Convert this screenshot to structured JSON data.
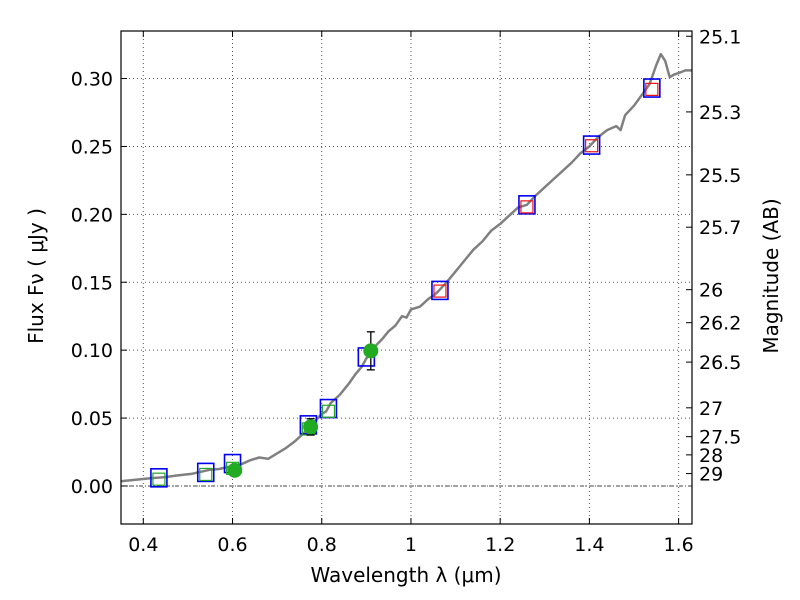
{
  "chart_data": {
    "type": "scatter",
    "xlabel": "Wavelength  λ (μm)",
    "ylabel": "Flux  Fν  ( μJy )",
    "ylabel_right": "Magnitude (AB)",
    "xlim": [
      0.35,
      1.63
    ],
    "ylim": [
      -0.028,
      0.335
    ],
    "grid": true,
    "x_ticks": [
      {
        "value": 0.4,
        "label": "0.4"
      },
      {
        "value": 0.6,
        "label": "0.6"
      },
      {
        "value": 0.8,
        "label": "0.8"
      },
      {
        "value": 1.0,
        "label": "1"
      },
      {
        "value": 1.2,
        "label": "1.2"
      },
      {
        "value": 1.4,
        "label": "1.4"
      },
      {
        "value": 1.6,
        "label": "1.6"
      }
    ],
    "y_ticks": [
      {
        "value": 0.0,
        "label": "0.00"
      },
      {
        "value": 0.05,
        "label": "0.05"
      },
      {
        "value": 0.1,
        "label": "0.10"
      },
      {
        "value": 0.15,
        "label": "0.15"
      },
      {
        "value": 0.2,
        "label": "0.20"
      },
      {
        "value": 0.25,
        "label": "0.25"
      },
      {
        "value": 0.3,
        "label": "0.30"
      }
    ],
    "mag_ticks": [
      {
        "value": 25.1,
        "label": "25.1"
      },
      {
        "value": 25.3,
        "label": "25.3"
      },
      {
        "value": 25.5,
        "label": "25.5"
      },
      {
        "value": 25.7,
        "label": "25.7"
      },
      {
        "value": 26,
        "label": "26"
      },
      {
        "value": 26.2,
        "label": "26.2"
      },
      {
        "value": 26.5,
        "label": "26.5"
      },
      {
        "value": 27,
        "label": "27"
      },
      {
        "value": 27.5,
        "label": "27.5"
      },
      {
        "value": 28,
        "label": "28"
      },
      {
        "value": 29,
        "label": "29"
      }
    ],
    "colors": {
      "model": "#808080",
      "observed": "#22aa22",
      "model_box": "#0000ee",
      "green_box": "#22aa22",
      "red_box": "#ee1111",
      "errorbar": "#000000",
      "grid": "#555555"
    },
    "series": [
      {
        "name": "model spectrum",
        "style": "line",
        "points": [
          [
            0.35,
            0.0035
          ],
          [
            0.38,
            0.0045
          ],
          [
            0.41,
            0.0055
          ],
          [
            0.43,
            0.006
          ],
          [
            0.45,
            0.0065
          ],
          [
            0.47,
            0.0075
          ],
          [
            0.49,
            0.0082
          ],
          [
            0.51,
            0.009
          ],
          [
            0.53,
            0.0105
          ],
          [
            0.55,
            0.012
          ],
          [
            0.57,
            0.0125
          ],
          [
            0.59,
            0.014
          ],
          [
            0.6,
            0.0145
          ],
          [
            0.62,
            0.016
          ],
          [
            0.64,
            0.019
          ],
          [
            0.66,
            0.021
          ],
          [
            0.68,
            0.02
          ],
          [
            0.7,
            0.024
          ],
          [
            0.72,
            0.028
          ],
          [
            0.74,
            0.033
          ],
          [
            0.76,
            0.039
          ],
          [
            0.78,
            0.046
          ],
          [
            0.8,
            0.053
          ],
          [
            0.81,
            0.055
          ],
          [
            0.82,
            0.061
          ],
          [
            0.84,
            0.067
          ],
          [
            0.86,
            0.075
          ],
          [
            0.875,
            0.082
          ],
          [
            0.89,
            0.088
          ],
          [
            0.9,
            0.094
          ],
          [
            0.91,
            0.097
          ],
          [
            0.92,
            0.103
          ],
          [
            0.935,
            0.108
          ],
          [
            0.95,
            0.114
          ],
          [
            0.965,
            0.118
          ],
          [
            0.98,
            0.125
          ],
          [
            0.99,
            0.124
          ],
          [
            1.0,
            0.13
          ],
          [
            1.02,
            0.132
          ],
          [
            1.04,
            0.138
          ],
          [
            1.05,
            0.14
          ],
          [
            1.06,
            0.143
          ],
          [
            1.08,
            0.15
          ],
          [
            1.1,
            0.158
          ],
          [
            1.12,
            0.166
          ],
          [
            1.14,
            0.174
          ],
          [
            1.16,
            0.18
          ],
          [
            1.18,
            0.188
          ],
          [
            1.2,
            0.193
          ],
          [
            1.22,
            0.199
          ],
          [
            1.24,
            0.205
          ],
          [
            1.26,
            0.207
          ],
          [
            1.28,
            0.214
          ],
          [
            1.3,
            0.22
          ],
          [
            1.32,
            0.226
          ],
          [
            1.34,
            0.232
          ],
          [
            1.36,
            0.238
          ],
          [
            1.38,
            0.245
          ],
          [
            1.4,
            0.25
          ],
          [
            1.42,
            0.257
          ],
          [
            1.44,
            0.262
          ],
          [
            1.46,
            0.265
          ],
          [
            1.47,
            0.262
          ],
          [
            1.48,
            0.273
          ],
          [
            1.5,
            0.28
          ],
          [
            1.52,
            0.289
          ],
          [
            1.535,
            0.296
          ],
          [
            1.55,
            0.31
          ],
          [
            1.56,
            0.318
          ],
          [
            1.57,
            0.313
          ],
          [
            1.58,
            0.301
          ],
          [
            1.59,
            0.303
          ],
          [
            1.6,
            0.304
          ],
          [
            1.615,
            0.306
          ],
          [
            1.63,
            0.306
          ]
        ]
      },
      {
        "name": "observed photometry",
        "style": "filled-circle",
        "points": [
          {
            "x": 0.605,
            "y": 0.0115,
            "err": 0.004
          },
          {
            "x": 0.775,
            "y": 0.0435,
            "err": 0.006
          },
          {
            "x": 0.91,
            "y": 0.0995,
            "err": 0.014
          }
        ]
      },
      {
        "name": "model photometry",
        "style": "open-square",
        "points": [
          {
            "x": 0.435,
            "y": 0.006
          },
          {
            "x": 0.54,
            "y": 0.01
          },
          {
            "x": 0.6,
            "y": 0.0165
          },
          {
            "x": 0.77,
            "y": 0.045
          },
          {
            "x": 0.815,
            "y": 0.057
          },
          {
            "x": 0.9,
            "y": 0.095
          },
          {
            "x": 1.065,
            "y": 0.144
          },
          {
            "x": 1.26,
            "y": 0.207
          },
          {
            "x": 1.405,
            "y": 0.251
          },
          {
            "x": 1.54,
            "y": 0.293
          }
        ]
      },
      {
        "name": "green band points",
        "style": "small-open-square",
        "points": [
          {
            "x": 0.435,
            "y": 0.005
          },
          {
            "x": 0.54,
            "y": 0.0085
          },
          {
            "x": 0.6,
            "y": 0.013
          },
          {
            "x": 0.77,
            "y": 0.042
          },
          {
            "x": 0.815,
            "y": 0.055
          }
        ]
      },
      {
        "name": "red band points",
        "style": "small-open-square",
        "points": [
          {
            "x": 1.065,
            "y": 0.1435
          },
          {
            "x": 1.26,
            "y": 0.2055
          },
          {
            "x": 1.405,
            "y": 0.2505
          },
          {
            "x": 1.54,
            "y": 0.292
          }
        ]
      }
    ]
  }
}
